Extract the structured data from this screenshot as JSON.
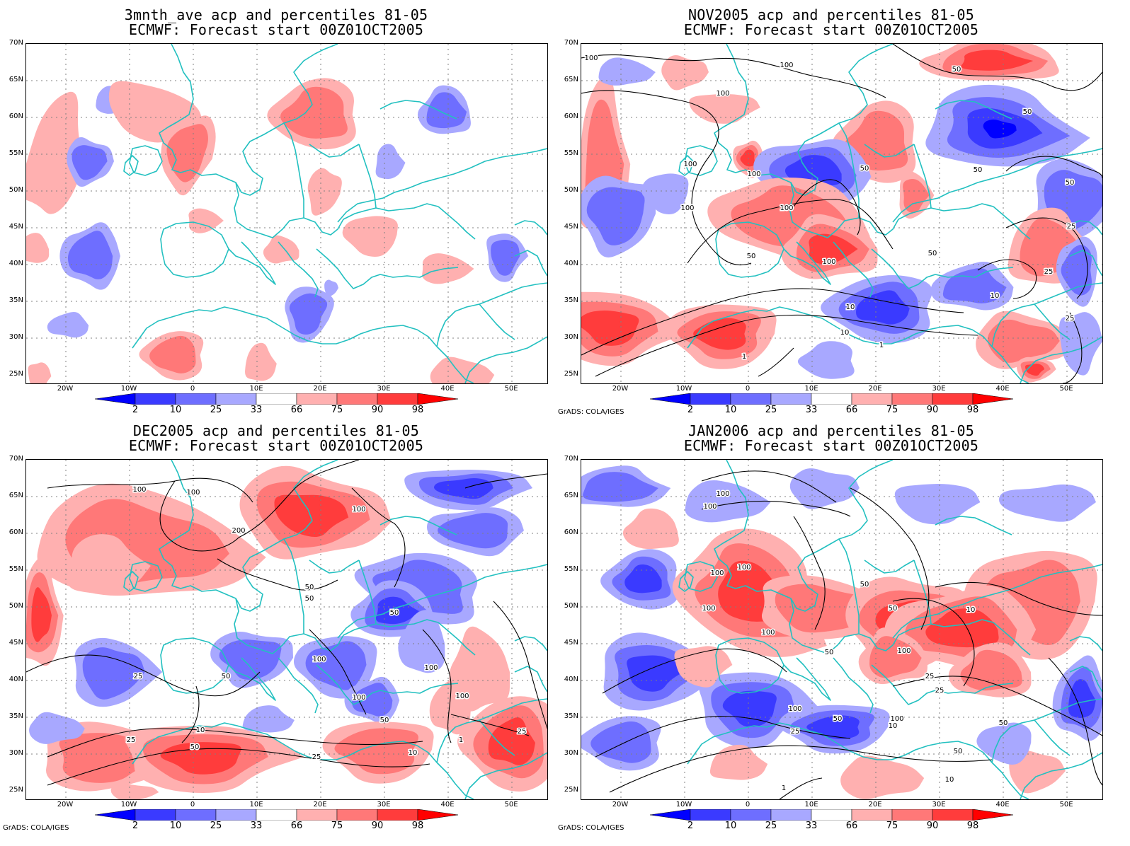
{
  "panels": [
    {
      "title_line1": "3mnth_ave acp and percentiles 81-05",
      "title_line2": "ECMWF: Forecast start 00Z01OCT2005",
      "credit": ""
    },
    {
      "title_line1": "NOV2005 acp and percentiles 81-05",
      "title_line2": "ECMWF: Forecast start 00Z01OCT2005",
      "credit": "GrADS: COLA/IGES"
    },
    {
      "title_line1": "DEC2005 acp and percentiles 81-05",
      "title_line2": "ECMWF: Forecast start 00Z01OCT2005",
      "credit": "GrADS: COLA/IGES"
    },
    {
      "title_line1": "JAN2006 acp and percentiles 81-05",
      "title_line2": "ECMWF: Forecast start 00Z01OCT2005",
      "credit": "GrADS: COLA/IGES"
    }
  ],
  "lat_labels": [
    "70N",
    "65N",
    "60N",
    "55N",
    "50N",
    "45N",
    "40N",
    "35N",
    "30N",
    "25N"
  ],
  "lon_labels": [
    "20W",
    "10W",
    "0",
    "10E",
    "20E",
    "30E",
    "40E",
    "50E"
  ],
  "colorbar": {
    "labels": [
      "2",
      "10",
      "25",
      "33",
      "66",
      "75",
      "90",
      "98"
    ],
    "colors": [
      "#0000ff",
      "#3a3aff",
      "#6e6eff",
      "#a8a8ff",
      "#ffffff",
      "#ffb0b0",
      "#ff7878",
      "#ff3c3c",
      "#ff0000"
    ]
  },
  "contour_labels": {
    "nov": [
      "100",
      "100",
      "100",
      "100",
      "100",
      "100",
      "100",
      "100",
      "50",
      "50",
      "50",
      "50",
      "50",
      "50",
      "50",
      "25",
      "25",
      "25",
      "10",
      "10",
      "10",
      "1",
      "1"
    ],
    "dec": [
      "100",
      "100",
      "200",
      "100",
      "50",
      "50",
      "50",
      "100",
      "100",
      "100",
      "100",
      "50",
      "50",
      "25",
      "10",
      "25",
      "50",
      "25",
      "10",
      "1",
      "25"
    ],
    "jan": [
      "100",
      "100",
      "100",
      "100",
      "100",
      "50",
      "50",
      "50",
      "100",
      "100",
      "100",
      "100",
      "50",
      "25",
      "10",
      "50",
      "50",
      "25",
      "10",
      "25",
      "1",
      "10"
    ]
  },
  "colors": {
    "coast": "#22c0c0",
    "contour": "#000000",
    "grid": "#808080"
  }
}
